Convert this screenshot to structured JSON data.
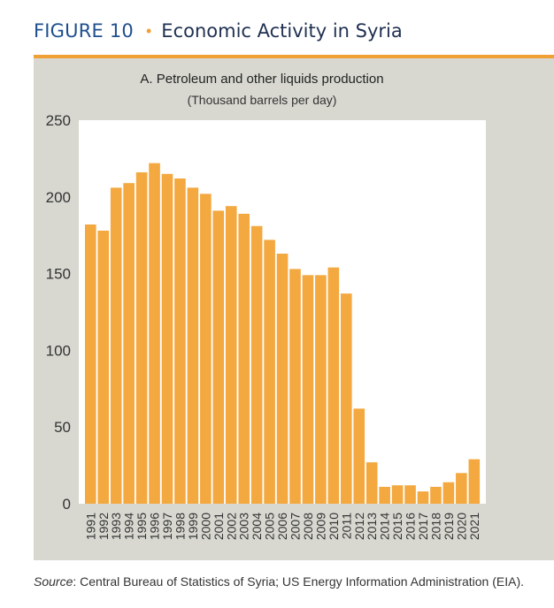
{
  "figure": {
    "number": "FIGURE 10",
    "separator": "•",
    "title": "Economic Activity in Syria"
  },
  "colors": {
    "accent": "#f0a136",
    "bar": "#f3a840",
    "panel": "#d8d8d1",
    "heading": "#1f4f8f"
  },
  "chart_data": {
    "type": "bar",
    "title": "A. Petroleum and other liquids production",
    "subtitle": "(Thousand barrels per day)",
    "xlabel": "",
    "ylabel": "",
    "ylim": [
      0,
      250
    ],
    "yticks": [
      "0",
      "50",
      "100",
      "150",
      "200",
      "250"
    ],
    "grid": false,
    "categories": [
      "1991",
      "1992",
      "1993",
      "1994",
      "1995",
      "1996",
      "1997",
      "1998",
      "1999",
      "2000",
      "2001",
      "2002",
      "2003",
      "2004",
      "2005",
      "2006",
      "2007",
      "2008",
      "2009",
      "2010",
      "2011",
      "2012",
      "2013",
      "2014",
      "2015",
      "2016",
      "2017",
      "2018",
      "2019",
      "2020",
      "2021"
    ],
    "series": [
      {
        "name": "Petroleum and other liquids production",
        "values": [
          182,
          178,
          206,
          209,
          216,
          222,
          215,
          212,
          206,
          202,
          191,
          194,
          189,
          181,
          172,
          163,
          153,
          149,
          149,
          154,
          137,
          62,
          27,
          11,
          12,
          12,
          8,
          11,
          14,
          20,
          29
        ]
      }
    ]
  },
  "source": {
    "label": "Source",
    "text": ": Central Bureau of Statistics of Syria; US Energy Information Administration (EIA)."
  }
}
